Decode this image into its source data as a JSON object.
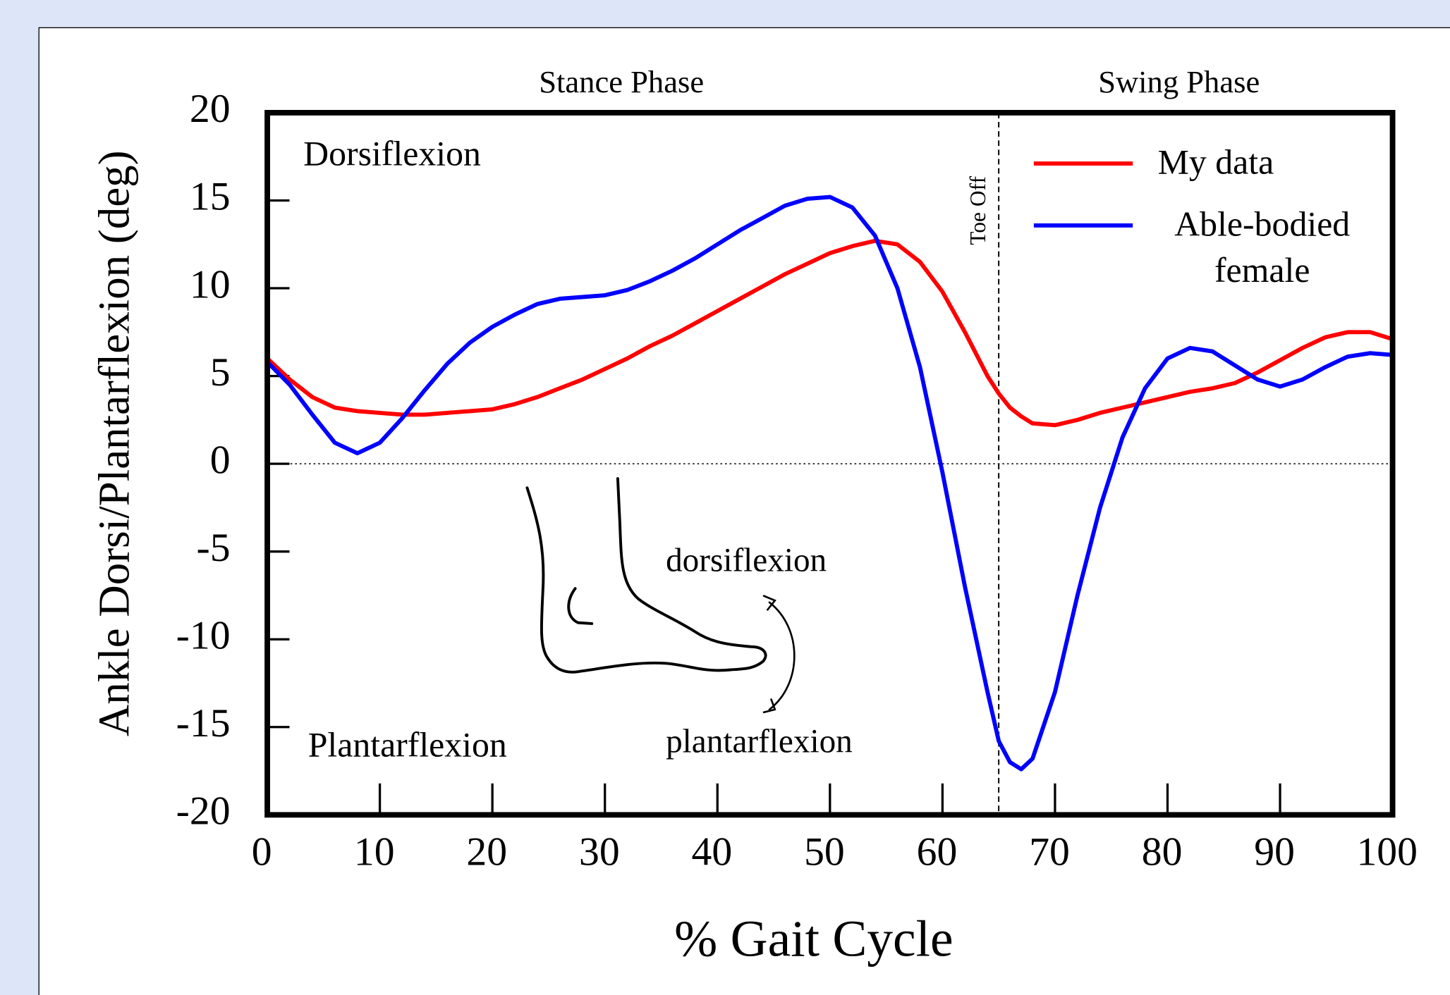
{
  "chart_data": {
    "type": "line",
    "xlabel": "% Gait Cycle",
    "ylabel": "Ankle Dorsi/Plantarflexion (deg)",
    "annotations": {
      "stance": "Stance Phase",
      "swing": "Swing Phase",
      "dorsi": "Dorsiflexion",
      "plantar": "Plantarflexion",
      "foot_dorsi": "dorsiflexion",
      "foot_plantar": "plantarflexion"
    },
    "marker": {
      "x": 65,
      "label": "Toe Off"
    },
    "x": [
      0,
      2,
      4,
      6,
      8,
      10,
      12,
      14,
      16,
      18,
      20,
      22,
      24,
      26,
      28,
      30,
      32,
      34,
      36,
      38,
      40,
      42,
      44,
      46,
      48,
      50,
      52,
      54,
      56,
      58,
      60,
      62,
      64,
      65,
      66,
      67,
      68,
      70,
      72,
      74,
      76,
      78,
      80,
      82,
      84,
      86,
      88,
      90,
      92,
      94,
      96,
      98,
      100
    ],
    "series": [
      {
        "name": "My data",
        "color": "#ff0000",
        "values": [
          6.0,
          4.8,
          3.8,
          3.2,
          3.0,
          2.9,
          2.8,
          2.8,
          2.9,
          3.0,
          3.1,
          3.4,
          3.8,
          4.3,
          4.8,
          5.4,
          6.0,
          6.7,
          7.3,
          8.0,
          8.7,
          9.4,
          10.1,
          10.8,
          11.4,
          12.0,
          12.4,
          12.7,
          12.5,
          11.5,
          9.8,
          7.5,
          5.0,
          4.0,
          3.2,
          2.7,
          2.3,
          2.2,
          2.5,
          2.9,
          3.2,
          3.5,
          3.8,
          4.1,
          4.3,
          4.6,
          5.2,
          5.9,
          6.6,
          7.2,
          7.5,
          7.5,
          7.1
        ]
      },
      {
        "name": "Able-bodied female",
        "color": "#0000ff",
        "values": [
          5.8,
          4.5,
          2.8,
          1.2,
          0.6,
          1.2,
          2.6,
          4.2,
          5.7,
          6.9,
          7.8,
          8.5,
          9.1,
          9.4,
          9.5,
          9.6,
          9.9,
          10.4,
          11.0,
          11.7,
          12.5,
          13.3,
          14.0,
          14.7,
          15.1,
          15.2,
          14.6,
          13.0,
          10.0,
          5.5,
          -0.5,
          -7.0,
          -13.0,
          -15.8,
          -17.0,
          -17.4,
          -16.8,
          -13.0,
          -7.5,
          -2.5,
          1.5,
          4.3,
          6.0,
          6.6,
          6.4,
          5.6,
          4.8,
          4.4,
          4.8,
          5.5,
          6.1,
          6.3,
          6.2
        ]
      }
    ],
    "xlim": [
      0,
      100
    ],
    "ylim": [
      -20,
      20
    ],
    "xticks": [
      0,
      10,
      20,
      30,
      40,
      50,
      60,
      70,
      80,
      90,
      100
    ],
    "yticks": [
      -20,
      -15,
      -10,
      -5,
      0,
      5,
      10,
      15,
      20
    ],
    "legend": "upper right"
  }
}
